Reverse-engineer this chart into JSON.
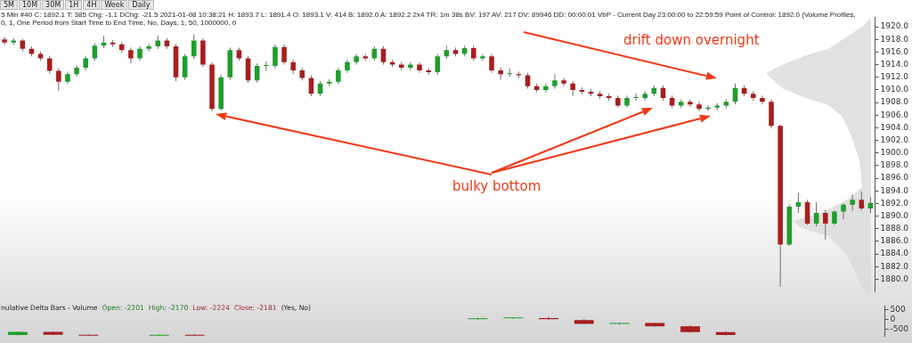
{
  "chart_data": [
    {
      "type": "candlestick",
      "title": "5 Min   #40   C: 1892.1   T: 385   Chg: -1.1   DChg: -21.5   2021-01-08 10:38:21 H: 1893.7 L: 1891.4 O: 1893.1 V: 414 B: 1892.0 A: 1892.2 2x4 TR: 1m 38s BV: 197 AV: 217 DV: 89946 DD: 00:00:01 VbP - Current Day 23:00:00 to 22:59:59   Point of Control: 1892.0   (Volume Profiles, 0, 1, One Period from Start Time to End Time, No, Days, 1, 50, 1000000, 0",
      "annotations": [
        "5M",
        "10M",
        "30M",
        "1H",
        "4H",
        "Week",
        "Daily",
        "drift down overnight",
        "bulky bottom"
      ],
      "categories": [
        null,
        null,
        null,
        null,
        null,
        null,
        null,
        null,
        null,
        null,
        null,
        null,
        null,
        null,
        null,
        null,
        null,
        null,
        null,
        null,
        null,
        null,
        null,
        null,
        null,
        null,
        null,
        null,
        null,
        null,
        null,
        null,
        null,
        null,
        null,
        null,
        null,
        null,
        null,
        null,
        null,
        null,
        null,
        null,
        null,
        null,
        null,
        null,
        null,
        null,
        null,
        null,
        null,
        null,
        null,
        null,
        null,
        null,
        null,
        null,
        null,
        null,
        null,
        null,
        null,
        null,
        null,
        null,
        null,
        null,
        null,
        null,
        null,
        null,
        null,
        null,
        null,
        null,
        null,
        null,
        null,
        null,
        null,
        null,
        null,
        null,
        null,
        null,
        null,
        null,
        null,
        null,
        null,
        null,
        null,
        null,
        null
      ],
      "ohlc": [
        [
          1918.0,
          1918.4,
          1917.1,
          1917.5
        ],
        [
          1917.5,
          1918.2,
          1917.1,
          1917.8
        ],
        [
          1917.8,
          1918.1,
          1916.1,
          1916.5
        ],
        [
          1916.5,
          1916.9,
          1915.3,
          1915.7
        ],
        [
          1915.7,
          1916.1,
          1914.6,
          1915.0
        ],
        [
          1915.0,
          1915.4,
          1912.6,
          1913.0
        ],
        [
          1913.0,
          1913.4,
          1909.9,
          1911.3
        ],
        [
          1911.3,
          1912.9,
          1910.9,
          1912.5
        ],
        [
          1912.5,
          1913.9,
          1912.1,
          1913.5
        ],
        [
          1913.5,
          1915.4,
          1913.1,
          1915.0
        ],
        [
          1915.0,
          1917.4,
          1914.6,
          1917.0
        ],
        [
          1917.0,
          1918.6,
          1916.6,
          1917.5
        ],
        [
          1917.5,
          1917.9,
          1916.8,
          1917.2
        ],
        [
          1917.2,
          1917.6,
          1915.9,
          1916.3
        ],
        [
          1916.3,
          1916.7,
          1914.2,
          1915.0
        ],
        [
          1915.0,
          1916.9,
          1914.6,
          1916.5
        ],
        [
          1916.5,
          1917.3,
          1916.1,
          1916.9
        ],
        [
          1916.9,
          1918.6,
          1916.5,
          1917.8
        ],
        [
          1917.8,
          1918.2,
          1916.5,
          1916.9
        ],
        [
          1916.9,
          1917.3,
          1911.4,
          1912.0
        ],
        [
          1912.0,
          1915.7,
          1911.6,
          1915.3
        ],
        [
          1915.3,
          1918.8,
          1914.9,
          1917.8
        ],
        [
          1917.8,
          1918.2,
          1913.6,
          1914.0
        ],
        [
          1914.0,
          1914.4,
          1906.6,
          1907.0
        ],
        [
          1907.0,
          1912.4,
          1906.7,
          1912.0
        ],
        [
          1912.0,
          1916.7,
          1911.6,
          1916.3
        ],
        [
          1916.3,
          1916.7,
          1914.6,
          1915.0
        ],
        [
          1915.0,
          1915.4,
          1911.1,
          1911.5
        ],
        [
          1911.5,
          1914.2,
          1911.1,
          1913.8
        ],
        [
          1913.8,
          1914.5,
          1913.0,
          1913.8
        ],
        [
          1913.8,
          1917.2,
          1913.4,
          1916.8
        ],
        [
          1916.8,
          1917.2,
          1914.0,
          1914.4
        ],
        [
          1914.4,
          1914.8,
          1912.5,
          1913.1
        ],
        [
          1913.1,
          1913.5,
          1911.5,
          1911.9
        ],
        [
          1911.9,
          1912.3,
          1909.0,
          1909.4
        ],
        [
          1909.4,
          1911.4,
          1909.0,
          1911.0
        ],
        [
          1911.0,
          1911.7,
          1910.6,
          1911.3
        ],
        [
          1911.3,
          1913.5,
          1910.9,
          1913.1
        ],
        [
          1913.1,
          1914.8,
          1912.7,
          1914.4
        ],
        [
          1914.4,
          1915.7,
          1914.0,
          1915.3
        ],
        [
          1915.3,
          1915.7,
          1914.6,
          1915.0
        ],
        [
          1915.0,
          1916.9,
          1914.6,
          1916.5
        ],
        [
          1916.5,
          1916.9,
          1914.0,
          1914.4
        ],
        [
          1914.4,
          1914.8,
          1913.6,
          1914.0
        ],
        [
          1914.0,
          1914.4,
          1913.1,
          1913.5
        ],
        [
          1913.5,
          1914.4,
          1913.1,
          1914.0
        ],
        [
          1914.0,
          1914.4,
          1912.7,
          1913.1
        ],
        [
          1913.1,
          1913.5,
          1912.4,
          1912.8
        ],
        [
          1912.8,
          1915.7,
          1912.4,
          1915.3
        ],
        [
          1915.3,
          1917.0,
          1914.9,
          1916.3
        ],
        [
          1916.3,
          1916.7,
          1915.3,
          1915.7
        ],
        [
          1915.7,
          1917.0,
          1915.3,
          1916.6
        ],
        [
          1916.6,
          1917.0,
          1914.6,
          1915.0
        ],
        [
          1915.0,
          1915.7,
          1914.6,
          1915.3
        ],
        [
          1915.3,
          1915.7,
          1912.7,
          1913.1
        ],
        [
          1913.1,
          1913.5,
          1911.6,
          1912.5
        ],
        [
          1912.5,
          1913.4,
          1912.1,
          1912.5
        ],
        [
          1912.5,
          1912.9,
          1911.9,
          1912.3
        ],
        [
          1912.3,
          1912.7,
          1910.2,
          1910.6
        ],
        [
          1910.6,
          1911.0,
          1909.6,
          1910.0
        ],
        [
          1910.0,
          1911.0,
          1909.6,
          1910.6
        ],
        [
          1910.6,
          1912.5,
          1910.2,
          1911.5
        ],
        [
          1911.5,
          1911.9,
          1910.6,
          1911.0
        ],
        [
          1911.0,
          1911.4,
          1909.0,
          1910.0
        ],
        [
          1910.0,
          1910.4,
          1909.3,
          1909.7
        ],
        [
          1909.7,
          1910.1,
          1909.0,
          1909.4
        ],
        [
          1909.4,
          1909.8,
          1908.6,
          1909.0
        ],
        [
          1909.0,
          1909.4,
          1908.3,
          1908.7
        ],
        [
          1908.7,
          1909.1,
          1907.2,
          1907.5
        ],
        [
          1907.5,
          1909.1,
          1907.2,
          1908.7
        ],
        [
          1908.7,
          1909.4,
          1908.3,
          1908.7
        ],
        [
          1908.7,
          1909.8,
          1908.3,
          1909.4
        ],
        [
          1909.4,
          1910.7,
          1909.0,
          1910.3
        ],
        [
          1910.3,
          1910.7,
          1908.3,
          1908.7
        ],
        [
          1908.7,
          1909.1,
          1907.1,
          1907.5
        ],
        [
          1907.5,
          1908.5,
          1907.1,
          1908.1
        ],
        [
          1908.1,
          1908.5,
          1907.3,
          1907.7
        ],
        [
          1907.7,
          1908.1,
          1906.6,
          1907.0
        ],
        [
          1907.0,
          1907.6,
          1906.7,
          1907.2
        ],
        [
          1907.2,
          1907.9,
          1906.8,
          1907.5
        ],
        [
          1907.5,
          1908.5,
          1907.1,
          1908.1
        ],
        [
          1908.1,
          1911.0,
          1907.7,
          1910.3
        ],
        [
          1910.3,
          1910.7,
          1909.0,
          1909.4
        ],
        [
          1909.4,
          1909.8,
          1908.3,
          1908.7
        ],
        [
          1908.7,
          1909.1,
          1907.7,
          1908.1
        ],
        [
          1908.1,
          1908.5,
          1903.9,
          1904.3
        ],
        [
          1904.3,
          1904.5,
          1878.8,
          1885.5
        ],
        [
          1885.5,
          1891.8,
          1885.3,
          1891.5
        ],
        [
          1891.5,
          1893.7,
          1890.5,
          1892.2
        ],
        [
          1892.2,
          1892.6,
          1888.6,
          1888.8
        ],
        [
          1888.8,
          1892.2,
          1888.4,
          1890.5
        ],
        [
          1890.5,
          1891.0,
          1886.3,
          1888.8
        ],
        [
          1888.8,
          1890.9,
          1888.6,
          1890.7
        ],
        [
          1890.7,
          1892.0,
          1889.5,
          1891.8
        ],
        [
          1891.8,
          1893.4,
          1890.9,
          1892.6
        ],
        [
          1892.6,
          1893.9,
          1890.9,
          1891.2
        ],
        [
          1891.2,
          1893.0,
          1890.5,
          1892.1
        ]
      ],
      "ylim": [
        1878,
        1921.5
      ],
      "yticks": [
        {
          "value": 1880,
          "label": "1880.0"
        },
        {
          "value": 1882,
          "label": "1882.0"
        },
        {
          "value": 1884,
          "label": "1884.0"
        },
        {
          "value": 1886,
          "label": "1886.0"
        },
        {
          "value": 1888,
          "label": "1888.0"
        },
        {
          "value": 1890,
          "label": "1890.0"
        },
        {
          "value": 1892,
          "label": "1892.0"
        },
        {
          "value": 1894,
          "label": "1894.0"
        },
        {
          "value": 1896,
          "label": "1896.0"
        },
        {
          "value": 1898,
          "label": "1898.0"
        },
        {
          "value": 1900,
          "label": "1900.0"
        },
        {
          "value": 1902,
          "label": "1902.0"
        },
        {
          "value": 1904,
          "label": "1904.0"
        },
        {
          "value": 1906,
          "label": "1906.0"
        },
        {
          "value": 1908,
          "label": "1908.0"
        },
        {
          "value": 1910,
          "label": "1910.0"
        },
        {
          "value": 1912,
          "label": "1912.0"
        },
        {
          "value": 1914,
          "label": "1914.0"
        },
        {
          "value": 1916,
          "label": "1916.0"
        },
        {
          "value": 1918,
          "label": "1918.0"
        },
        {
          "value": 1920,
          "label": "1920.0"
        }
      ],
      "tick_labels": "y"
    },
    {
      "type": "candlestick",
      "title": "nulative Delta Bars - Volume",
      "annotations": [
        "Open: -2201",
        "High: -2170",
        "Low: -2224",
        "Close: -2181",
        "(Yes, No)"
      ],
      "categories": [
        null,
        null,
        null,
        null,
        null,
        null,
        null,
        null,
        null,
        null,
        null,
        null,
        null,
        null,
        null,
        null,
        null,
        null,
        null,
        null,
        null,
        null,
        null,
        null,
        null
      ],
      "ohlc": [
        [
          -800,
          -620,
          -820,
          -640
        ],
        [
          -640,
          -600,
          -800,
          -780
        ],
        [
          -790,
          -760,
          -820,
          -800
        ],
        null,
        [
          -800,
          -770,
          -820,
          -790
        ],
        [
          -790,
          -760,
          -820,
          -800
        ],
        null,
        null,
        null,
        null,
        null,
        null,
        null,
        [
          20,
          80,
          0,
          60
        ],
        [
          60,
          100,
          30,
          80
        ],
        [
          80,
          170,
          -20,
          0
        ],
        [
          0,
          20,
          -260,
          -220
        ],
        [
          -220,
          -150,
          -260,
          -180
        ],
        [
          -180,
          -170,
          -380,
          -350
        ],
        [
          -350,
          -300,
          -680,
          -650
        ],
        [
          -650,
          -600,
          -820,
          -800
        ],
        null,
        null,
        null,
        null
      ],
      "ylim": [
        -870,
        700
      ],
      "yticks": [
        500,
        0,
        -500
      ],
      "tick_labels": "y"
    }
  ]
}
